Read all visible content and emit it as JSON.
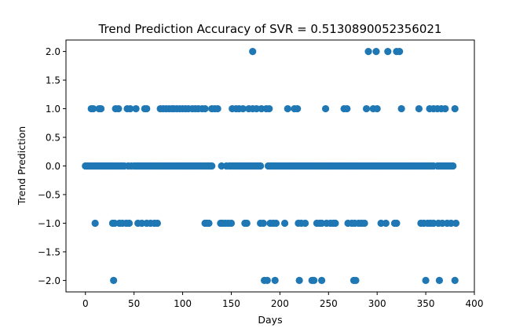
{
  "chart_data": {
    "type": "scatter",
    "title": "Trend Prediction Accuracy of SVR = 0.5130890052356021",
    "xlabel": "Days",
    "ylabel": "Trend Prediction",
    "xlim": [
      -20,
      400
    ],
    "ylim": [
      -2.2,
      2.2
    ],
    "xticks": [
      0,
      50,
      100,
      150,
      200,
      250,
      300,
      350,
      400
    ],
    "yticks": [
      -2.0,
      -1.5,
      -1.0,
      -0.5,
      0.0,
      0.5,
      1.0,
      1.5,
      2.0
    ],
    "xtick_labels": [
      "0",
      "50",
      "100",
      "150",
      "200",
      "250",
      "300",
      "350",
      "400"
    ],
    "ytick_labels": [
      "−2.0",
      "−1.5",
      "−1.0",
      "−0.5",
      "0.0",
      "0.5",
      "1.0",
      "1.5",
      "2.0"
    ],
    "grid": false,
    "marker_color": "#1f77b4",
    "series": [
      {
        "values_by_level": [
          {
            "y": 2,
            "x": [
              172,
              291,
              299,
              311,
              320,
              323
            ]
          },
          {
            "y": 1,
            "x": [
              6,
              8,
              14,
              16,
              31,
              34,
              43,
              46,
              52,
              61,
              63,
              77,
              80,
              83,
              86,
              89,
              91,
              94,
              97,
              100,
              103,
              106,
              110,
              113,
              116,
              120,
              123,
              130,
              133,
              136,
              151,
              155,
              158,
              162,
              168,
              172,
              176,
              181,
              186,
              189,
              208,
              215,
              218,
              247,
              266,
              269,
              289,
              296,
              300,
              325,
              343,
              354,
              358,
              362,
              366,
              370,
              380
            ]
          },
          {
            "y": 0,
            "x": [
              0,
              2,
              4,
              6,
              8,
              10,
              12,
              14,
              16,
              18,
              20,
              22,
              24,
              26,
              28,
              30,
              32,
              34,
              36,
              38,
              40,
              44,
              47,
              50,
              52,
              54,
              56,
              58,
              60,
              62,
              64,
              66,
              68,
              70,
              72,
              74,
              76,
              78,
              80,
              82,
              84,
              86,
              88,
              90,
              92,
              94,
              96,
              98,
              100,
              102,
              104,
              106,
              108,
              110,
              112,
              114,
              116,
              118,
              120,
              122,
              124,
              126,
              128,
              130,
              140,
              145,
              148,
              150,
              152,
              154,
              156,
              158,
              160,
              162,
              164,
              166,
              168,
              170,
              172,
              174,
              176,
              178,
              180,
              188,
              190,
              192,
              194,
              196,
              198,
              200,
              202,
              204,
              206,
              208,
              210,
              212,
              214,
              216,
              218,
              220,
              222,
              224,
              226,
              228,
              230,
              232,
              234,
              236,
              238,
              240,
              242,
              244,
              246,
              248,
              250,
              252,
              254,
              256,
              258,
              260,
              262,
              264,
              266,
              268,
              270,
              272,
              274,
              276,
              278,
              280,
              282,
              284,
              286,
              288,
              290,
              292,
              294,
              296,
              298,
              300,
              302,
              304,
              306,
              308,
              310,
              312,
              314,
              316,
              318,
              320,
              322,
              324,
              326,
              328,
              330,
              332,
              334,
              336,
              338,
              340,
              342,
              344,
              346,
              348,
              350,
              352,
              354,
              356,
              358,
              362,
              364,
              366,
              368,
              370,
              372,
              374,
              376,
              378
            ]
          },
          {
            "y": -1,
            "x": [
              10,
              28,
              30,
              35,
              38,
              42,
              45,
              54,
              58,
              63,
              67,
              71,
              74,
              123,
              125,
              127,
              139,
              141,
              144,
              147,
              150,
              164,
              166,
              180,
              183,
              190,
              193,
              196,
              205,
              219,
              222,
              226,
              238,
              241,
              243,
              248,
              252,
              255,
              257,
              270,
              274,
              277,
              281,
              284,
              287,
              304,
              309,
              318,
              320,
              345,
              348,
              352,
              355,
              358,
              363,
              367,
              372,
              376,
              381
            ]
          },
          {
            "y": -2,
            "x": [
              29,
              184,
              187,
              195,
              220,
              233,
              235,
              243,
              276,
              278,
              350,
              364,
              380
            ]
          }
        ]
      }
    ]
  }
}
